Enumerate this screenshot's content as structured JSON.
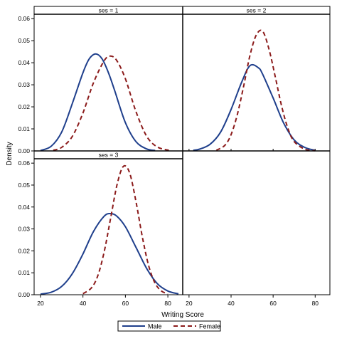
{
  "chart_data": {
    "type": "line",
    "xlabel": "Writing Score",
    "ylabel": "Density",
    "xlim": [
      17,
      87
    ],
    "ylim": [
      0,
      0.062
    ],
    "x_ticks": [
      20,
      40,
      60,
      80
    ],
    "y_ticks": [
      0.0,
      0.01,
      0.02,
      0.03,
      0.04,
      0.05,
      0.06
    ],
    "y_tick_labels": [
      "0.00",
      "0.01",
      "0.02",
      "0.03",
      "0.04",
      "0.05",
      "0.06"
    ],
    "x_tick_labels": [
      "20",
      "40",
      "60",
      "80"
    ],
    "legend": {
      "position": "bottom-center",
      "entries": [
        {
          "name": "Male",
          "color": "#1f3f8c",
          "style": "solid"
        },
        {
          "name": "Female",
          "color": "#8b1a1a",
          "style": "dashed"
        }
      ]
    },
    "panels": [
      {
        "header": "ses = 1",
        "series": [
          {
            "name": "Male",
            "x": [
              20,
              25,
              30,
              35,
              40,
              43,
              46,
              49,
              52,
              55,
              60,
              65,
              70,
              74
            ],
            "y": [
              0.0002,
              0.0021,
              0.0086,
              0.0215,
              0.0355,
              0.0418,
              0.044,
              0.0418,
              0.0355,
              0.0272,
              0.0128,
              0.0042,
              0.0009,
              0.0002
            ]
          },
          {
            "name": "Female",
            "x": [
              26,
              30,
              35,
              40,
              45,
              50,
              53,
              56,
              60,
              65,
              70,
              75,
              81
            ],
            "y": [
              0.0003,
              0.0016,
              0.0066,
              0.0172,
              0.031,
              0.0409,
              0.043,
              0.0409,
              0.0327,
              0.0178,
              0.0067,
              0.0018,
              0.0002
            ]
          }
        ]
      },
      {
        "header": "ses = 2",
        "series": [
          {
            "name": "Male",
            "x": [
              22,
              25,
              30,
              35,
              40,
              45,
              49,
              53,
              55,
              60,
              65,
              70,
              75,
              80
            ],
            "y": [
              0.0003,
              0.0008,
              0.003,
              0.0085,
              0.0188,
              0.0311,
              0.0387,
              0.0377,
              0.0348,
              0.024,
              0.0127,
              0.005,
              0.0016,
              0.0003
            ]
          },
          {
            "name": "Female",
            "x": [
              33,
              37,
              40,
              43,
              46,
              49,
              52,
              55,
              58,
              61,
              64,
              67,
              70,
              75,
              80
            ],
            "y": [
              0.0003,
              0.0025,
              0.0074,
              0.0166,
              0.0295,
              0.0434,
              0.0526,
              0.0543,
              0.0463,
              0.0337,
              0.0205,
              0.0103,
              0.0043,
              0.0008,
              0.0001
            ]
          }
        ]
      },
      {
        "header": "ses = 3",
        "series": [
          {
            "name": "Male",
            "x": [
              20,
              25,
              30,
              35,
              40,
              45,
              50,
              53,
              56,
              60,
              65,
              70,
              75,
              80,
              85
            ],
            "y": [
              0.0003,
              0.0011,
              0.0038,
              0.0096,
              0.0186,
              0.0289,
              0.0358,
              0.037,
              0.0358,
              0.031,
              0.0216,
              0.012,
              0.0051,
              0.0017,
              0.0004
            ]
          },
          {
            "name": "Female",
            "x": [
              40,
              44,
              47,
              50,
              53,
              56,
              59,
              62,
              65,
              68,
              71,
              74,
              77,
              80
            ],
            "y": [
              0.0005,
              0.0031,
              0.0087,
              0.0195,
              0.0347,
              0.0499,
              0.0585,
              0.0555,
              0.0424,
              0.0262,
              0.0131,
              0.0052,
              0.0017,
              0.0004
            ]
          }
        ]
      }
    ]
  }
}
